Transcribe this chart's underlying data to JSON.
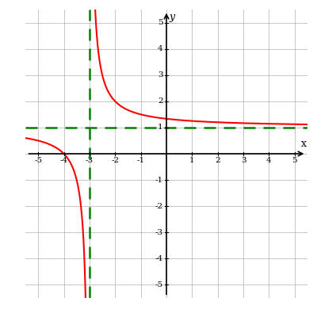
{
  "xlim": [
    -5.5,
    5.5
  ],
  "ylim": [
    -5.5,
    5.5
  ],
  "xaxis_range": [
    -5,
    5
  ],
  "yaxis_range": [
    -5,
    5
  ],
  "xticks": [
    -5,
    -4,
    -3,
    -2,
    -1,
    1,
    2,
    3,
    4,
    5
  ],
  "yticks": [
    -5,
    -4,
    -3,
    -2,
    -1,
    1,
    2,
    3,
    4,
    5
  ],
  "xlabel": "x",
  "ylabel": "y",
  "asymptote_x": -3,
  "asymptote_y": 1,
  "curve_color": "#ff0000",
  "asymptote_color": "#008000",
  "bg_color": "#ffffff",
  "grid_color": "#b0b0b0",
  "axis_color": "#000000",
  "curve_linewidth": 1.5,
  "asymptote_linewidth": 1.8,
  "figsize": [
    4.0,
    4.0
  ],
  "dpi": 100
}
